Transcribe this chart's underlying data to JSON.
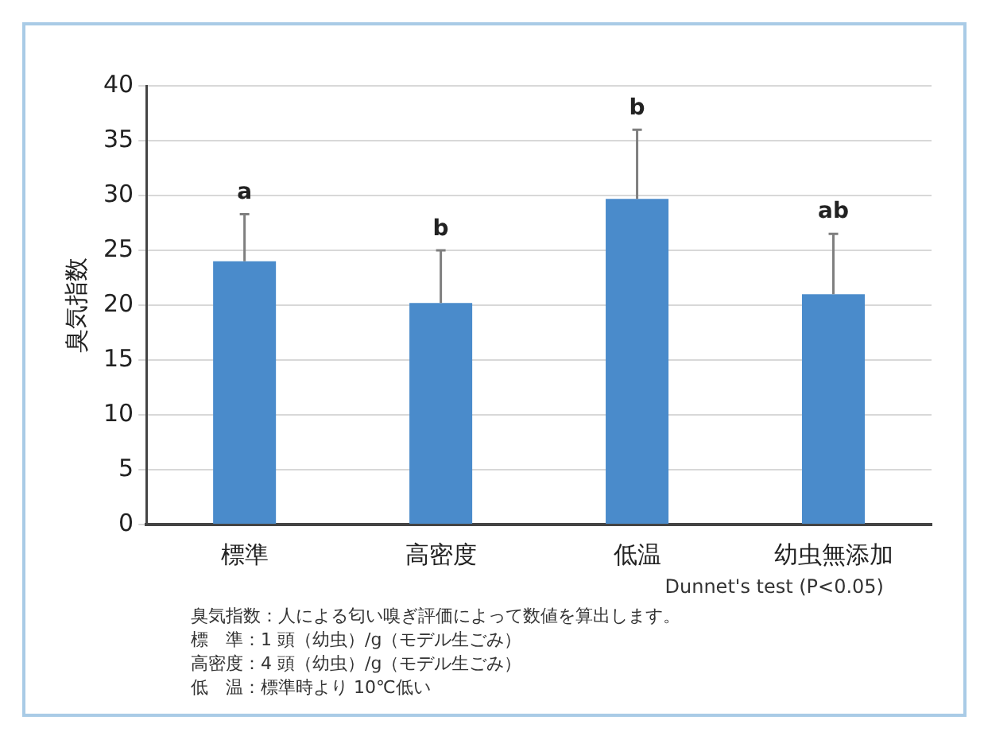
{
  "chart_data": {
    "type": "bar",
    "ylabel": "臭気指数",
    "categories": [
      "標準",
      "高密度",
      "低温",
      "幼虫無添加"
    ],
    "values": [
      24,
      20.2,
      29.7,
      21
    ],
    "color": "#4a8bcb",
    "errors": [
      [
        24,
        28.3
      ],
      [
        20.2,
        25
      ],
      [
        29.7,
        36
      ],
      [
        21,
        26.5
      ]
    ],
    "ylim": [
      0,
      40
    ],
    "yticks": [
      0,
      5,
      10,
      15,
      20,
      25,
      30,
      35,
      40
    ],
    "grid": "y",
    "legend": false,
    "annotations": [
      "a",
      "b",
      "b",
      "ab",
      "Dunnet's test (P<0.05)",
      "臭気指数：人による匂い嗅ぎ評価によって数値を算出します。",
      "標　準：1 頭（幼虫）/g（モデル生ごみ）",
      "高密度：4 頭（幼虫）/g（モデル生ごみ）",
      "低　温：標準時より 10℃低い"
    ]
  }
}
